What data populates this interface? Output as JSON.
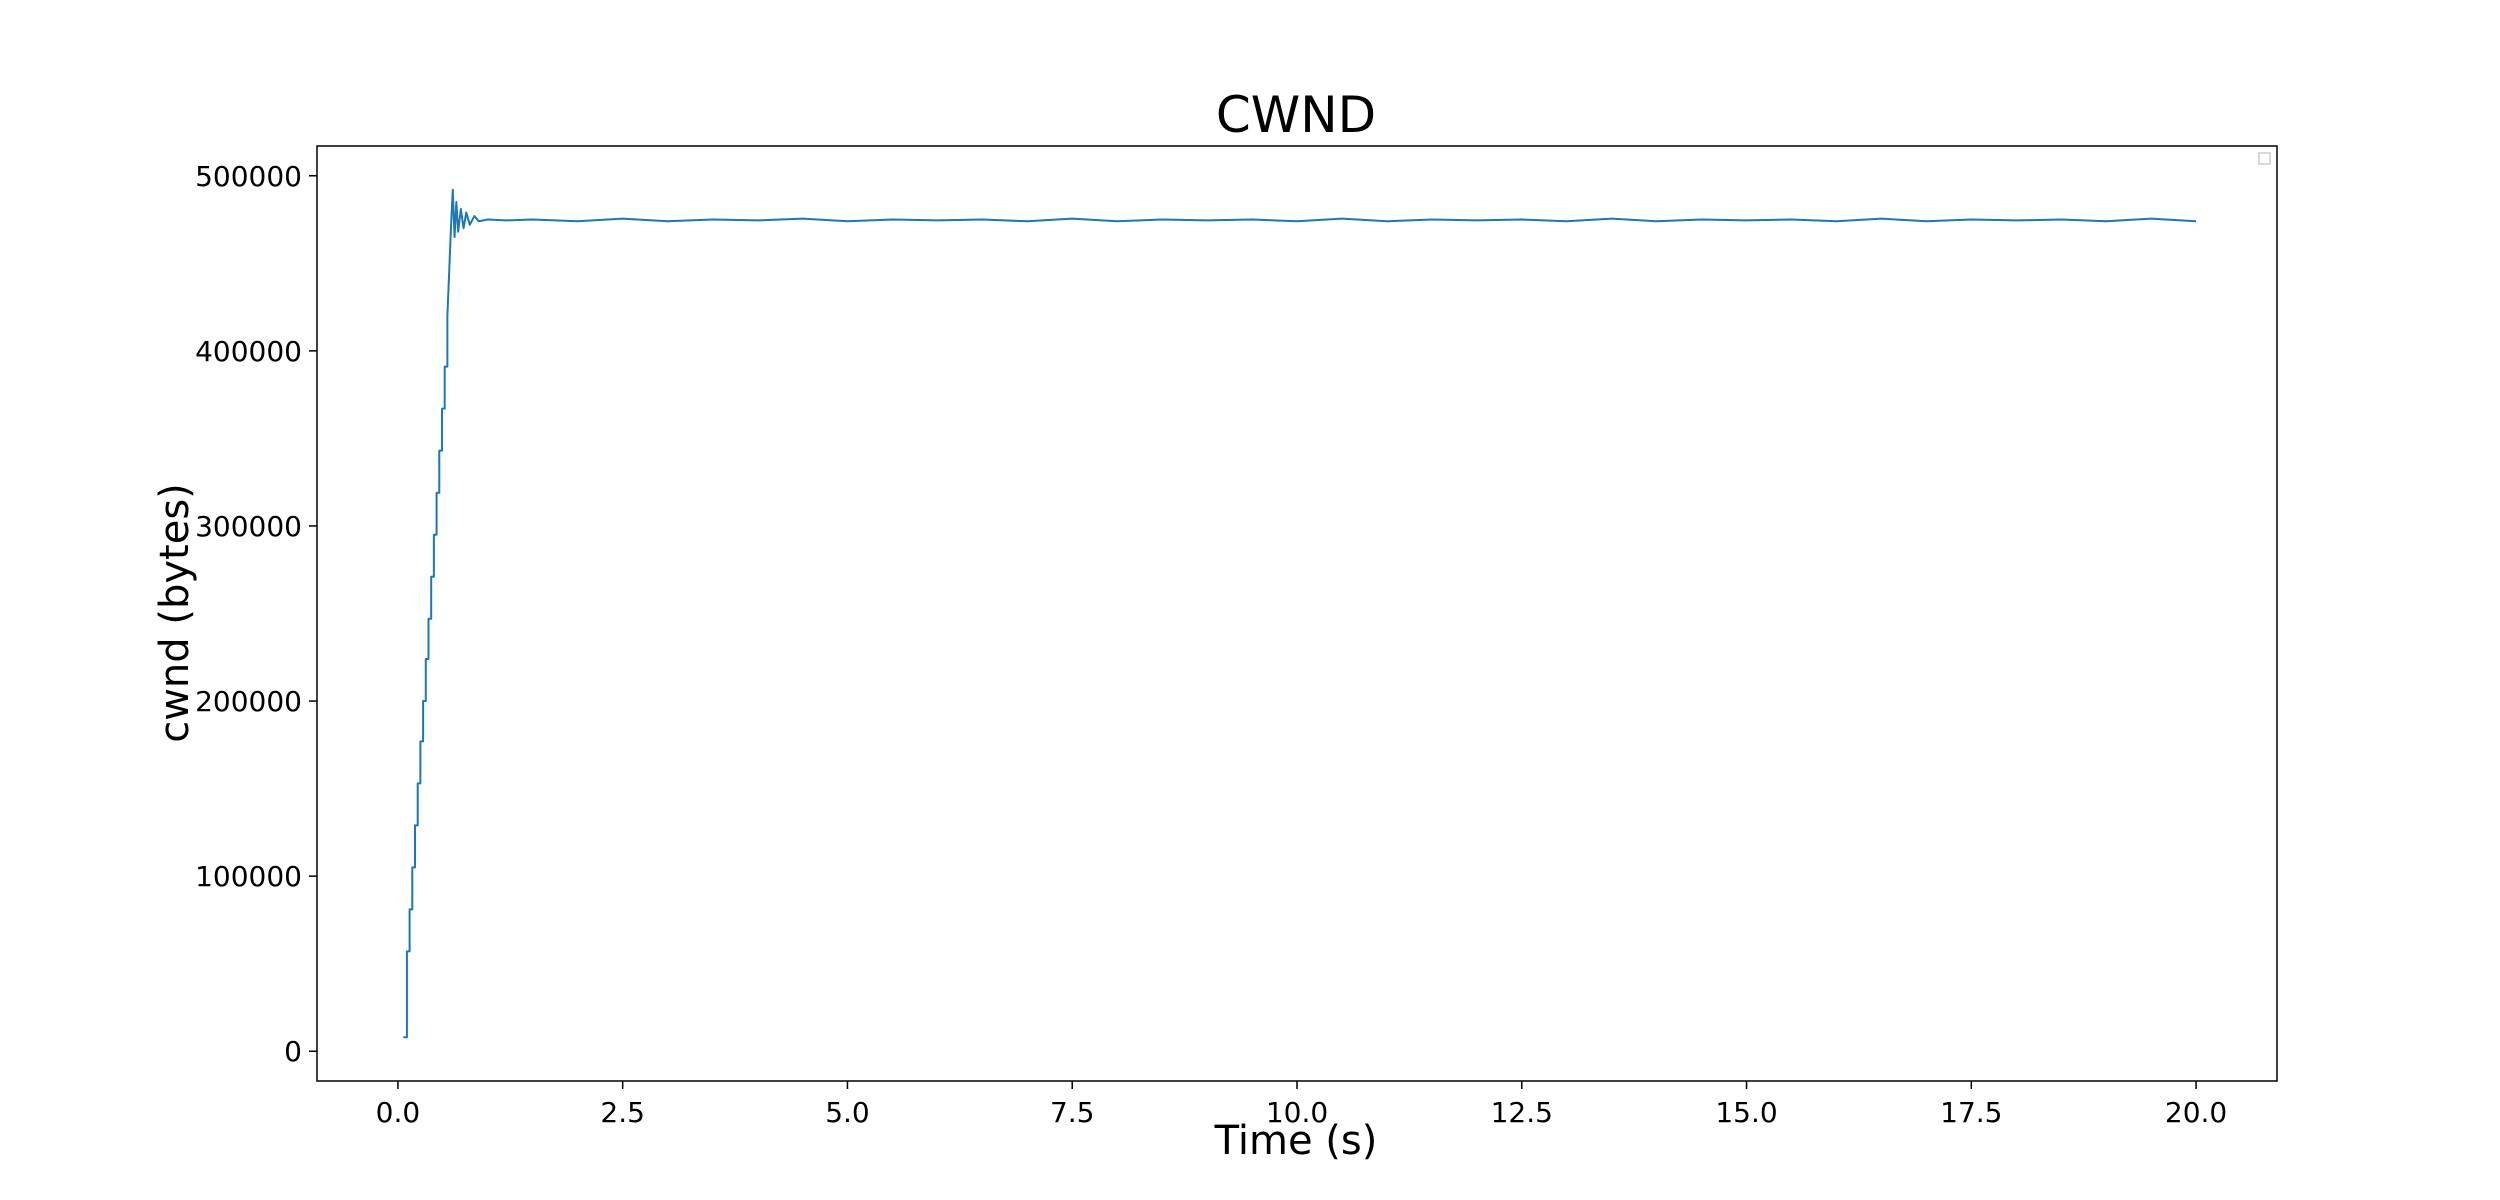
{
  "chart_data": {
    "type": "line",
    "title": "CWND",
    "xlabel": "Time (s)",
    "ylabel": "cwnd (bytes)",
    "xlim": [
      -0.9,
      20.9
    ],
    "ylim": [
      -17000,
      517000
    ],
    "x_ticks": [
      0.0,
      2.5,
      5.0,
      7.5,
      10.0,
      12.5,
      15.0,
      17.5,
      20.0
    ],
    "x_tick_labels": [
      "0.0",
      "2.5",
      "5.0",
      "7.5",
      "10.0",
      "12.5",
      "15.0",
      "17.5",
      "20.0"
    ],
    "y_ticks": [
      0,
      100000,
      200000,
      300000,
      400000,
      500000
    ],
    "y_tick_labels": [
      "0",
      "100000",
      "200000",
      "300000",
      "400000",
      "500000"
    ],
    "grid": false,
    "legend": "top-right (empty)",
    "series": [
      {
        "color": "#1f77b4",
        "x": [
          0.06,
          0.1,
          0.1,
          0.13,
          0.13,
          0.16,
          0.16,
          0.19,
          0.19,
          0.22,
          0.22,
          0.25,
          0.25,
          0.28,
          0.28,
          0.31,
          0.31,
          0.34,
          0.34,
          0.37,
          0.37,
          0.4,
          0.4,
          0.43,
          0.43,
          0.46,
          0.46,
          0.49,
          0.49,
          0.52,
          0.52,
          0.55,
          0.55,
          0.57,
          0.59,
          0.61,
          0.63,
          0.65,
          0.67,
          0.7,
          0.73,
          0.76,
          0.8,
          0.85,
          0.9,
          1.0,
          1.2,
          1.5,
          2.0,
          2.5,
          3.0,
          3.5,
          4.0,
          4.5,
          5.0,
          5.5,
          6.0,
          6.5,
          7.0,
          7.5,
          8.0,
          8.5,
          9.0,
          9.5,
          10.0,
          10.5,
          11.0,
          11.5,
          12.0,
          12.5,
          13.0,
          13.5,
          14.0,
          14.5,
          15.0,
          15.5,
          16.0,
          16.5,
          17.0,
          17.5,
          18.0,
          18.5,
          19.0,
          19.5,
          20.0
        ],
        "y": [
          8000,
          8000,
          57000,
          57000,
          81000,
          81000,
          105000,
          105000,
          129000,
          129000,
          153000,
          153000,
          177000,
          177000,
          200000,
          200000,
          224000,
          224000,
          247000,
          247000,
          271000,
          271000,
          295000,
          295000,
          319000,
          319000,
          343000,
          343000,
          367000,
          367000,
          391000,
          391000,
          420000,
          445000,
          470000,
          492000,
          465000,
          485000,
          468000,
          481000,
          470000,
          479000,
          472000,
          477000,
          474000,
          475000,
          474500,
          475000,
          474000,
          475500,
          474000,
          475000,
          474500,
          475500,
          474000,
          475000,
          474500,
          475000,
          474000,
          475500,
          474000,
          475000,
          474500,
          475000,
          474000,
          475500,
          474000,
          475000,
          474500,
          475000,
          474000,
          475500,
          474000,
          475000,
          474500,
          475000,
          474000,
          475500,
          474000,
          475000,
          474500,
          475000,
          474000,
          475500,
          474000
        ]
      }
    ]
  }
}
